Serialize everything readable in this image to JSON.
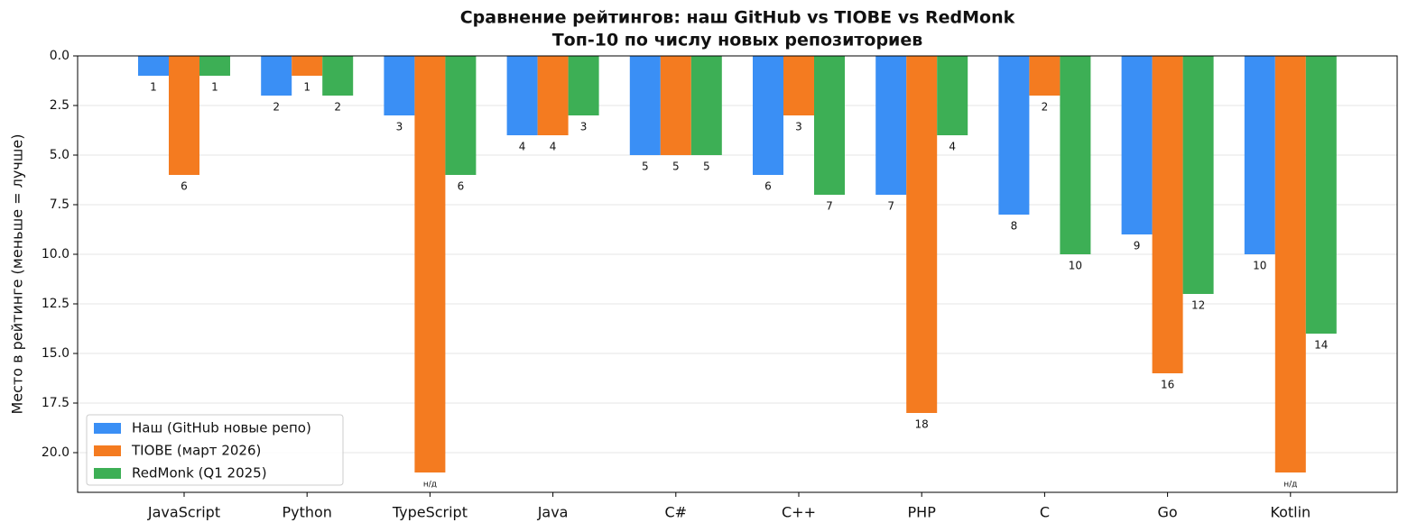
{
  "chart_data": {
    "type": "bar",
    "title": "Сравнение рейтингов: наш GitHub vs TIOBE vs RedMonk",
    "subtitle": "Топ-10 по числу новых репозиториев",
    "y_label": "Место в рейтинге (меньше = лучше)",
    "categories": [
      "JavaScript",
      "Python",
      "TypeScript",
      "Java",
      "C#",
      "C++",
      "PHP",
      "C",
      "Go",
      "Kotlin"
    ],
    "series": [
      {
        "name": "Наш (GitHub новые репо)",
        "color": "#3a8ff5",
        "values": [
          1,
          2,
          3,
          4,
          5,
          6,
          7,
          8,
          9,
          10
        ]
      },
      {
        "name": "TIOBE (март 2026)",
        "color": "#f47b20",
        "values": [
          6,
          1,
          21,
          4,
          5,
          3,
          18,
          2,
          16,
          21
        ],
        "value_labels": [
          null,
          null,
          "н/д",
          null,
          null,
          null,
          null,
          null,
          null,
          "н/д"
        ]
      },
      {
        "name": "RedMonk (Q1 2025)",
        "color": "#3daf55",
        "values": [
          1,
          2,
          6,
          3,
          5,
          7,
          4,
          10,
          12,
          14
        ]
      }
    ],
    "ylim": [
      0,
      22
    ],
    "y_inverted": true,
    "yticks": [
      {
        "value": 0,
        "label": "0.0"
      },
      2.5,
      {
        "value": 5,
        "label": "5.0"
      },
      7.5,
      {
        "value": 10,
        "label": "10.0"
      },
      12.5,
      {
        "value": 15,
        "label": "15.0"
      },
      17.5,
      {
        "value": 20,
        "label": "20.0"
      }
    ],
    "grid": true,
    "legend": "lower left"
  }
}
